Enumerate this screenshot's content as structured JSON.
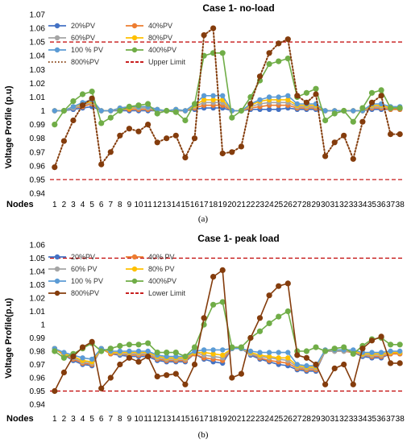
{
  "chart_data": [
    {
      "type": "line",
      "title": "Case 1- no-load",
      "caption": "(a)",
      "xlabel": "Nodes",
      "ylabel": "Voltage Profile (p.u)",
      "ylim": [
        0.94,
        1.07
      ],
      "yticks": [
        "0.94",
        "0.95",
        "0.96",
        "0.97",
        "0.98",
        "0.99",
        "1",
        "1.01",
        "1.02",
        "1.03",
        "1.04",
        "1.05",
        "1.06",
        "1.07"
      ],
      "x": [
        1,
        2,
        3,
        4,
        5,
        6,
        7,
        8,
        9,
        10,
        11,
        12,
        13,
        14,
        15,
        16,
        17,
        18,
        19,
        20,
        21,
        22,
        23,
        24,
        25,
        26,
        27,
        28,
        29,
        30,
        31,
        32,
        33,
        34,
        35,
        36,
        37,
        38
      ],
      "legend_columns": 2,
      "series": [
        {
          "name": "20%PV",
          "color": "#4472C4",
          "style": "solid",
          "values": [
            1,
            1,
            1.001,
            1.002,
            1.003,
            1,
            1,
            1,
            1,
            1,
            1,
            1,
            1,
            1,
            1,
            1.001,
            1.002,
            1.002,
            1.002,
            1,
            1,
            1.001,
            1.001,
            1.001,
            1.001,
            1.002,
            1.001,
            1.001,
            1.001,
            1,
            1,
            1,
            1,
            1,
            1.001,
            1.001,
            1.001,
            1.001
          ]
        },
        {
          "name": "40%PV",
          "color": "#ED7D31",
          "style": "solid",
          "values": [
            1,
            1,
            1.002,
            1.003,
            1.005,
            1,
            1,
            1.001,
            1.001,
            1.001,
            1.001,
            1,
            1,
            1,
            1,
            1.002,
            1.004,
            1.004,
            1.004,
            1,
            1,
            1.002,
            1.003,
            1.004,
            1.004,
            1.004,
            1.002,
            1.002,
            1.002,
            1,
            1,
            1,
            1,
            1,
            1.002,
            1.002,
            1.001,
            1.001
          ]
        },
        {
          "name": "60%PV",
          "color": "#A5A5A5",
          "style": "solid",
          "values": [
            1,
            1,
            1.002,
            1.004,
            1.006,
            1,
            1,
            1.001,
            1.002,
            1.002,
            1.002,
            1,
            1,
            1,
            1,
            1.003,
            1.006,
            1.006,
            1.006,
            1,
            1,
            1.003,
            1.005,
            1.006,
            1.006,
            1.006,
            1.003,
            1.003,
            1.003,
            1,
            1,
            1,
            1,
            1,
            1.003,
            1.003,
            1.002,
            1.002
          ]
        },
        {
          "name": "80%PV",
          "color": "#FFC000",
          "style": "solid",
          "values": [
            1,
            1,
            1.003,
            1.005,
            1.007,
            1,
            1,
            1.002,
            1.002,
            1.003,
            1.003,
            1.001,
            1,
            1.001,
            1,
            1.004,
            1.008,
            1.008,
            1.008,
            1,
            1,
            1.004,
            1.007,
            1.008,
            1.008,
            1.008,
            1.004,
            1.004,
            1.004,
            1,
            1,
            1,
            1,
            1,
            1.004,
            1.004,
            1.002,
            1.002
          ]
        },
        {
          "name": "100 % PV",
          "color": "#5B9BD5",
          "style": "solid",
          "values": [
            1,
            1,
            1.003,
            1.006,
            1.008,
            1,
            1,
            1.002,
            1.003,
            1.003,
            1.003,
            1.001,
            1,
            1.001,
            1,
            1.005,
            1.011,
            1.011,
            1.011,
            1,
            1,
            1.005,
            1.008,
            1.01,
            1.01,
            1.011,
            1.005,
            1.005,
            1.005,
            1,
            1,
            1,
            1,
            1,
            1.005,
            1.005,
            1.003,
            1.003
          ]
        },
        {
          "name": "400%PV",
          "color": "#70AD47",
          "style": "solid",
          "values": [
            0.99,
            1,
            1.007,
            1.012,
            1.014,
            0.991,
            0.995,
            1,
            1.003,
            1.004,
            1.005,
            0.998,
            1,
            0.999,
            0.993,
            1.005,
            1.04,
            1.042,
            1.042,
            0.995,
            1,
            1.01,
            1.022,
            1.034,
            1.036,
            1.038,
            1.01,
            1.013,
            1.016,
            0.993,
            0.998,
            1,
            0.992,
            1.002,
            1.013,
            1.015,
            1.002,
            1.002
          ]
        },
        {
          "name": "800%PV",
          "color": "#843C0C",
          "style": "dotted",
          "values": [
            0.959,
            0.978,
            0.993,
            1.004,
            1.009,
            0.961,
            0.97,
            0.982,
            0.987,
            0.985,
            0.99,
            0.977,
            0.98,
            0.982,
            0.966,
            0.98,
            1.055,
            1.06,
            0.969,
            0.97,
            0.974,
            1.005,
            1.025,
            1.042,
            1.049,
            1.052,
            1.011,
            1.006,
            1.012,
            0.967,
            0.977,
            0.982,
            0.965,
            0.992,
            1.006,
            1.011,
            0.983,
            0.983
          ]
        },
        {
          "name": "Upper Limit",
          "color": "#C00000",
          "style": "dashed",
          "kind": "hline",
          "value": 1.05
        }
      ],
      "extra_hlines": [
        0.95
      ]
    },
    {
      "type": "line",
      "title": "Case 1- peak load",
      "caption": "(b)",
      "xlabel": "Nodes",
      "ylabel": "Voltage Profile(p.u)",
      "ylim": [
        0.94,
        1.06
      ],
      "yticks": [
        "0.94",
        "0.95",
        "0.96",
        "0.97",
        "0.98",
        "0.99",
        "1",
        "1.01",
        "1.02",
        "1.03",
        "1.04",
        "1.05",
        "1.06"
      ],
      "x": [
        1,
        2,
        3,
        4,
        5,
        6,
        7,
        8,
        9,
        10,
        11,
        12,
        13,
        14,
        15,
        16,
        17,
        18,
        19,
        20,
        21,
        22,
        23,
        24,
        25,
        26,
        27,
        28,
        29,
        30,
        31,
        32,
        33,
        34,
        35,
        36,
        37,
        38
      ],
      "legend_columns": 2,
      "series": [
        {
          "name": "20%PV",
          "color": "#4472C4",
          "style": "solid",
          "values": [
            0.982,
            0.977,
            0.973,
            0.97,
            0.969,
            0.982,
            0.978,
            0.977,
            0.976,
            0.976,
            0.976,
            0.973,
            0.972,
            0.972,
            0.972,
            0.978,
            0.974,
            0.972,
            0.971,
            0.982,
            0.982,
            0.977,
            0.974,
            0.972,
            0.97,
            0.969,
            0.966,
            0.965,
            0.965,
            0.98,
            0.98,
            0.98,
            0.979,
            0.976,
            0.975,
            0.975,
            0.978,
            0.978
          ]
        },
        {
          "name": "40% PV",
          "color": "#ED7D31",
          "style": "solid",
          "values": [
            0.982,
            0.977,
            0.974,
            0.971,
            0.97,
            0.982,
            0.978,
            0.978,
            0.977,
            0.977,
            0.977,
            0.974,
            0.973,
            0.973,
            0.973,
            0.978,
            0.975,
            0.974,
            0.973,
            0.982,
            0.982,
            0.978,
            0.975,
            0.973,
            0.972,
            0.971,
            0.967,
            0.966,
            0.966,
            0.98,
            0.98,
            0.98,
            0.979,
            0.977,
            0.976,
            0.976,
            0.978,
            0.978
          ]
        },
        {
          "name": "60% PV",
          "color": "#A5A5A5",
          "style": "solid",
          "values": [
            0.982,
            0.978,
            0.975,
            0.972,
            0.971,
            0.982,
            0.979,
            0.978,
            0.978,
            0.978,
            0.978,
            0.975,
            0.974,
            0.974,
            0.974,
            0.979,
            0.977,
            0.976,
            0.975,
            0.982,
            0.982,
            0.978,
            0.976,
            0.975,
            0.974,
            0.973,
            0.968,
            0.967,
            0.967,
            0.98,
            0.98,
            0.98,
            0.98,
            0.977,
            0.977,
            0.977,
            0.979,
            0.979
          ]
        },
        {
          "name": "80% PV",
          "color": "#FFC000",
          "style": "solid",
          "values": [
            0.982,
            0.978,
            0.976,
            0.973,
            0.972,
            0.982,
            0.979,
            0.979,
            0.979,
            0.979,
            0.979,
            0.976,
            0.975,
            0.975,
            0.975,
            0.979,
            0.979,
            0.978,
            0.977,
            0.982,
            0.982,
            0.979,
            0.977,
            0.976,
            0.975,
            0.975,
            0.969,
            0.968,
            0.968,
            0.981,
            0.981,
            0.981,
            0.98,
            0.978,
            0.978,
            0.978,
            0.979,
            0.979
          ]
        },
        {
          "name": "100 % PV",
          "color": "#5B9BD5",
          "style": "solid",
          "values": [
            0.982,
            0.979,
            0.977,
            0.975,
            0.974,
            0.982,
            0.98,
            0.98,
            0.98,
            0.98,
            0.98,
            0.977,
            0.976,
            0.976,
            0.976,
            0.98,
            0.981,
            0.981,
            0.981,
            0.982,
            0.982,
            0.98,
            0.979,
            0.979,
            0.979,
            0.979,
            0.97,
            0.969,
            0.969,
            0.981,
            0.981,
            0.981,
            0.981,
            0.979,
            0.979,
            0.979,
            0.98,
            0.98
          ]
        },
        {
          "name": "400%PV",
          "color": "#70AD47",
          "style": "solid",
          "values": [
            0.98,
            0.975,
            0.978,
            0.982,
            0.986,
            0.98,
            0.982,
            0.984,
            0.985,
            0.985,
            0.986,
            0.979,
            0.979,
            0.979,
            0.976,
            0.983,
            1.0,
            1.015,
            1.017,
            0.983,
            0.983,
            0.99,
            0.995,
            1.001,
            1.006,
            1.01,
            0.98,
            0.98,
            0.983,
            0.98,
            0.982,
            0.983,
            0.978,
            0.984,
            0.989,
            0.99,
            0.985,
            0.985
          ]
        },
        {
          "name": "800%PV",
          "color": "#843C0C",
          "style": "solid",
          "values": [
            0.95,
            0.964,
            0.976,
            0.983,
            0.987,
            0.952,
            0.96,
            0.97,
            0.975,
            0.972,
            0.976,
            0.961,
            0.962,
            0.963,
            0.955,
            0.97,
            1.005,
            1.036,
            1.041,
            0.96,
            0.963,
            0.99,
            1.005,
            1.022,
            1.029,
            1.031,
            0.977,
            0.975,
            0.97,
            0.955,
            0.967,
            0.97,
            0.955,
            0.982,
            0.988,
            0.991,
            0.971,
            0.971
          ]
        },
        {
          "name": "Lower Limit",
          "color": "#C00000",
          "style": "dashed",
          "kind": "hline",
          "value": 0.95
        }
      ],
      "extra_hlines": [
        1.05
      ]
    }
  ]
}
